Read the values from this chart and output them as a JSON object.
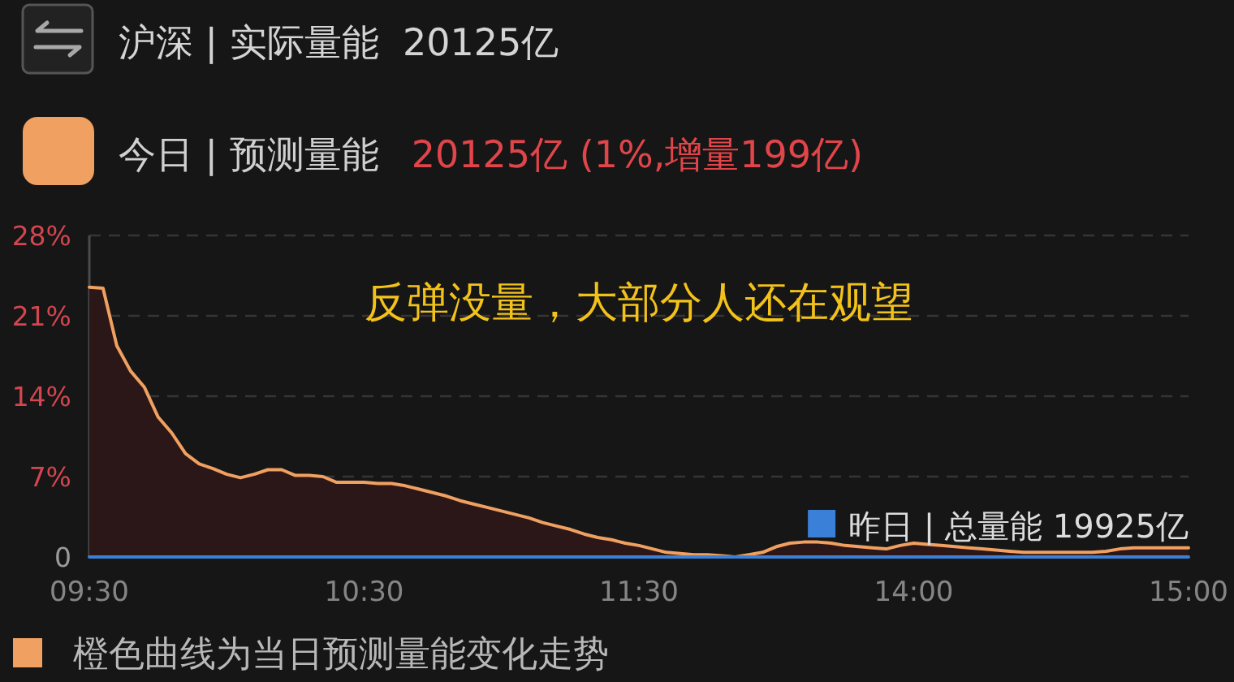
{
  "chart_data": {
    "type": "area",
    "title": "沪深 | 实际量能  20125亿",
    "annotations": [
      "20125亿 (1%,增量199亿)",
      "反弹没量，大部分人还在观望",
      "橙色曲线为当日预测量能变化走势"
    ],
    "categories": [
      "09:30",
      null,
      null,
      null,
      null,
      null,
      null,
      null,
      null,
      null,
      null,
      null,
      null,
      null,
      null,
      null,
      null,
      null,
      null,
      null,
      "10:30",
      null,
      null,
      null,
      null,
      null,
      null,
      null,
      null,
      null,
      null,
      null,
      null,
      null,
      null,
      null,
      null,
      null,
      null,
      null,
      "11:30",
      null,
      null,
      null,
      null,
      null,
      null,
      null,
      null,
      null,
      null,
      null,
      null,
      null,
      null,
      null,
      null,
      null,
      null,
      null,
      "14:00",
      null,
      null,
      null,
      null,
      null,
      null,
      null,
      null,
      null,
      null,
      null,
      null,
      null,
      null,
      null,
      null,
      null,
      null,
      null,
      "15:00"
    ],
    "ylim": [
      0,
      28
    ],
    "yticks": [
      0,
      {
        "value": 7,
        "label": "7%"
      },
      {
        "value": 14,
        "label": "14%"
      },
      {
        "value": 21,
        "label": "21%"
      },
      {
        "value": 28,
        "label": "28%"
      }
    ],
    "grid": "y",
    "legend": "top",
    "series": [
      {
        "name": "今日 | 预测量能",
        "color": "#f0a060",
        "values": [
          23.5,
          23.4,
          18.4,
          16.2,
          14.8,
          12.2,
          10.8,
          9.0,
          8.1,
          7.7,
          7.2,
          6.9,
          7.2,
          7.6,
          7.6,
          7.1,
          7.1,
          7.0,
          6.5,
          6.5,
          6.5,
          6.4,
          6.4,
          6.2,
          5.9,
          5.6,
          5.3,
          4.9,
          4.6,
          4.3,
          4.0,
          3.7,
          3.4,
          3.0,
          2.7,
          2.4,
          2.0,
          1.7,
          1.5,
          1.2,
          1.0,
          0.7,
          0.4,
          0.3,
          0.2,
          0.2,
          0.1,
          0.0,
          0.2,
          0.4,
          0.9,
          1.2,
          1.3,
          1.3,
          1.2,
          1.0,
          0.9,
          0.8,
          0.7,
          1.0,
          1.2,
          1.1,
          1.0,
          0.9,
          0.8,
          0.7,
          0.6,
          0.5,
          0.4,
          0.4,
          0.4,
          0.4,
          0.4,
          0.4,
          0.5,
          0.7,
          0.8,
          0.8,
          0.8,
          0.8,
          0.8
        ]
      },
      {
        "name": "昨日 | 总量能 19925亿",
        "type": "line",
        "color": "#3a80d8",
        "values": [
          0,
          0,
          0,
          0,
          0,
          0,
          0,
          0,
          0,
          0,
          0,
          0,
          0,
          0,
          0,
          0,
          0,
          0,
          0,
          0,
          0,
          0,
          0,
          0,
          0,
          0,
          0,
          0,
          0,
          0,
          0,
          0,
          0,
          0,
          0,
          0,
          0,
          0,
          0,
          0,
          0,
          0,
          0,
          0,
          0,
          0,
          0,
          0,
          0,
          0,
          0,
          0,
          0,
          0,
          0,
          0,
          0,
          0,
          0,
          0,
          0,
          0,
          0,
          0,
          0,
          0,
          0,
          0,
          0,
          0,
          0,
          0,
          0,
          0,
          0,
          0,
          0,
          0,
          0,
          0,
          0
        ]
      }
    ]
  }
}
